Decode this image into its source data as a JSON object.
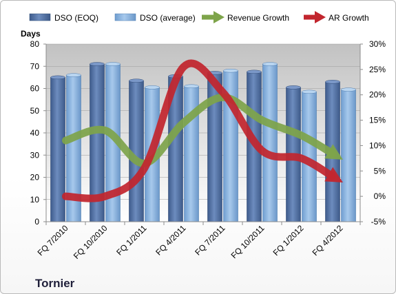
{
  "chart_data": {
    "type": "bar",
    "title": "",
    "company": "Tornier",
    "ylabel": "Days",
    "ylim": [
      0,
      80
    ],
    "yticks": [
      "0",
      "10",
      "20",
      "30",
      "40",
      "50",
      "60",
      "70",
      "80"
    ],
    "y2lim": [
      -5,
      30
    ],
    "y2ticks": [
      "-5%",
      "0%",
      "5%",
      "10%",
      "15%",
      "20%",
      "25%",
      "30%"
    ],
    "categories": [
      "FQ 7/2010",
      "FQ 10/2010",
      "FQ 1/2011",
      "FQ 4/2011",
      "FQ 7/2011",
      "FQ 10/2011",
      "FQ 1/2012",
      "FQ 4/2012"
    ],
    "series": [
      {
        "name": "DSO (EOQ)",
        "kind": "bar",
        "axis": "left",
        "color": "#5a79a8",
        "values": [
          65,
          71,
          63.5,
          65.5,
          67,
          67.5,
          60.5,
          63
        ]
      },
      {
        "name": "DSO (average)",
        "kind": "bar",
        "axis": "left",
        "color": "#8ab4e0",
        "values": [
          66,
          71,
          60.5,
          61,
          68,
          71,
          58.5,
          59.5
        ]
      },
      {
        "name": "Revenue Growth",
        "kind": "arrow-line",
        "axis": "right",
        "color": "#7ea44a",
        "values": [
          11,
          13,
          6.5,
          14.5,
          19.5,
          15,
          12,
          7.5
        ]
      },
      {
        "name": "AR Growth",
        "kind": "arrow-line",
        "axis": "right",
        "color": "#c2262e",
        "values": [
          0,
          0,
          5.5,
          25.5,
          20.5,
          9,
          7.5,
          3
        ]
      }
    ],
    "legend": "top",
    "grid": true
  }
}
